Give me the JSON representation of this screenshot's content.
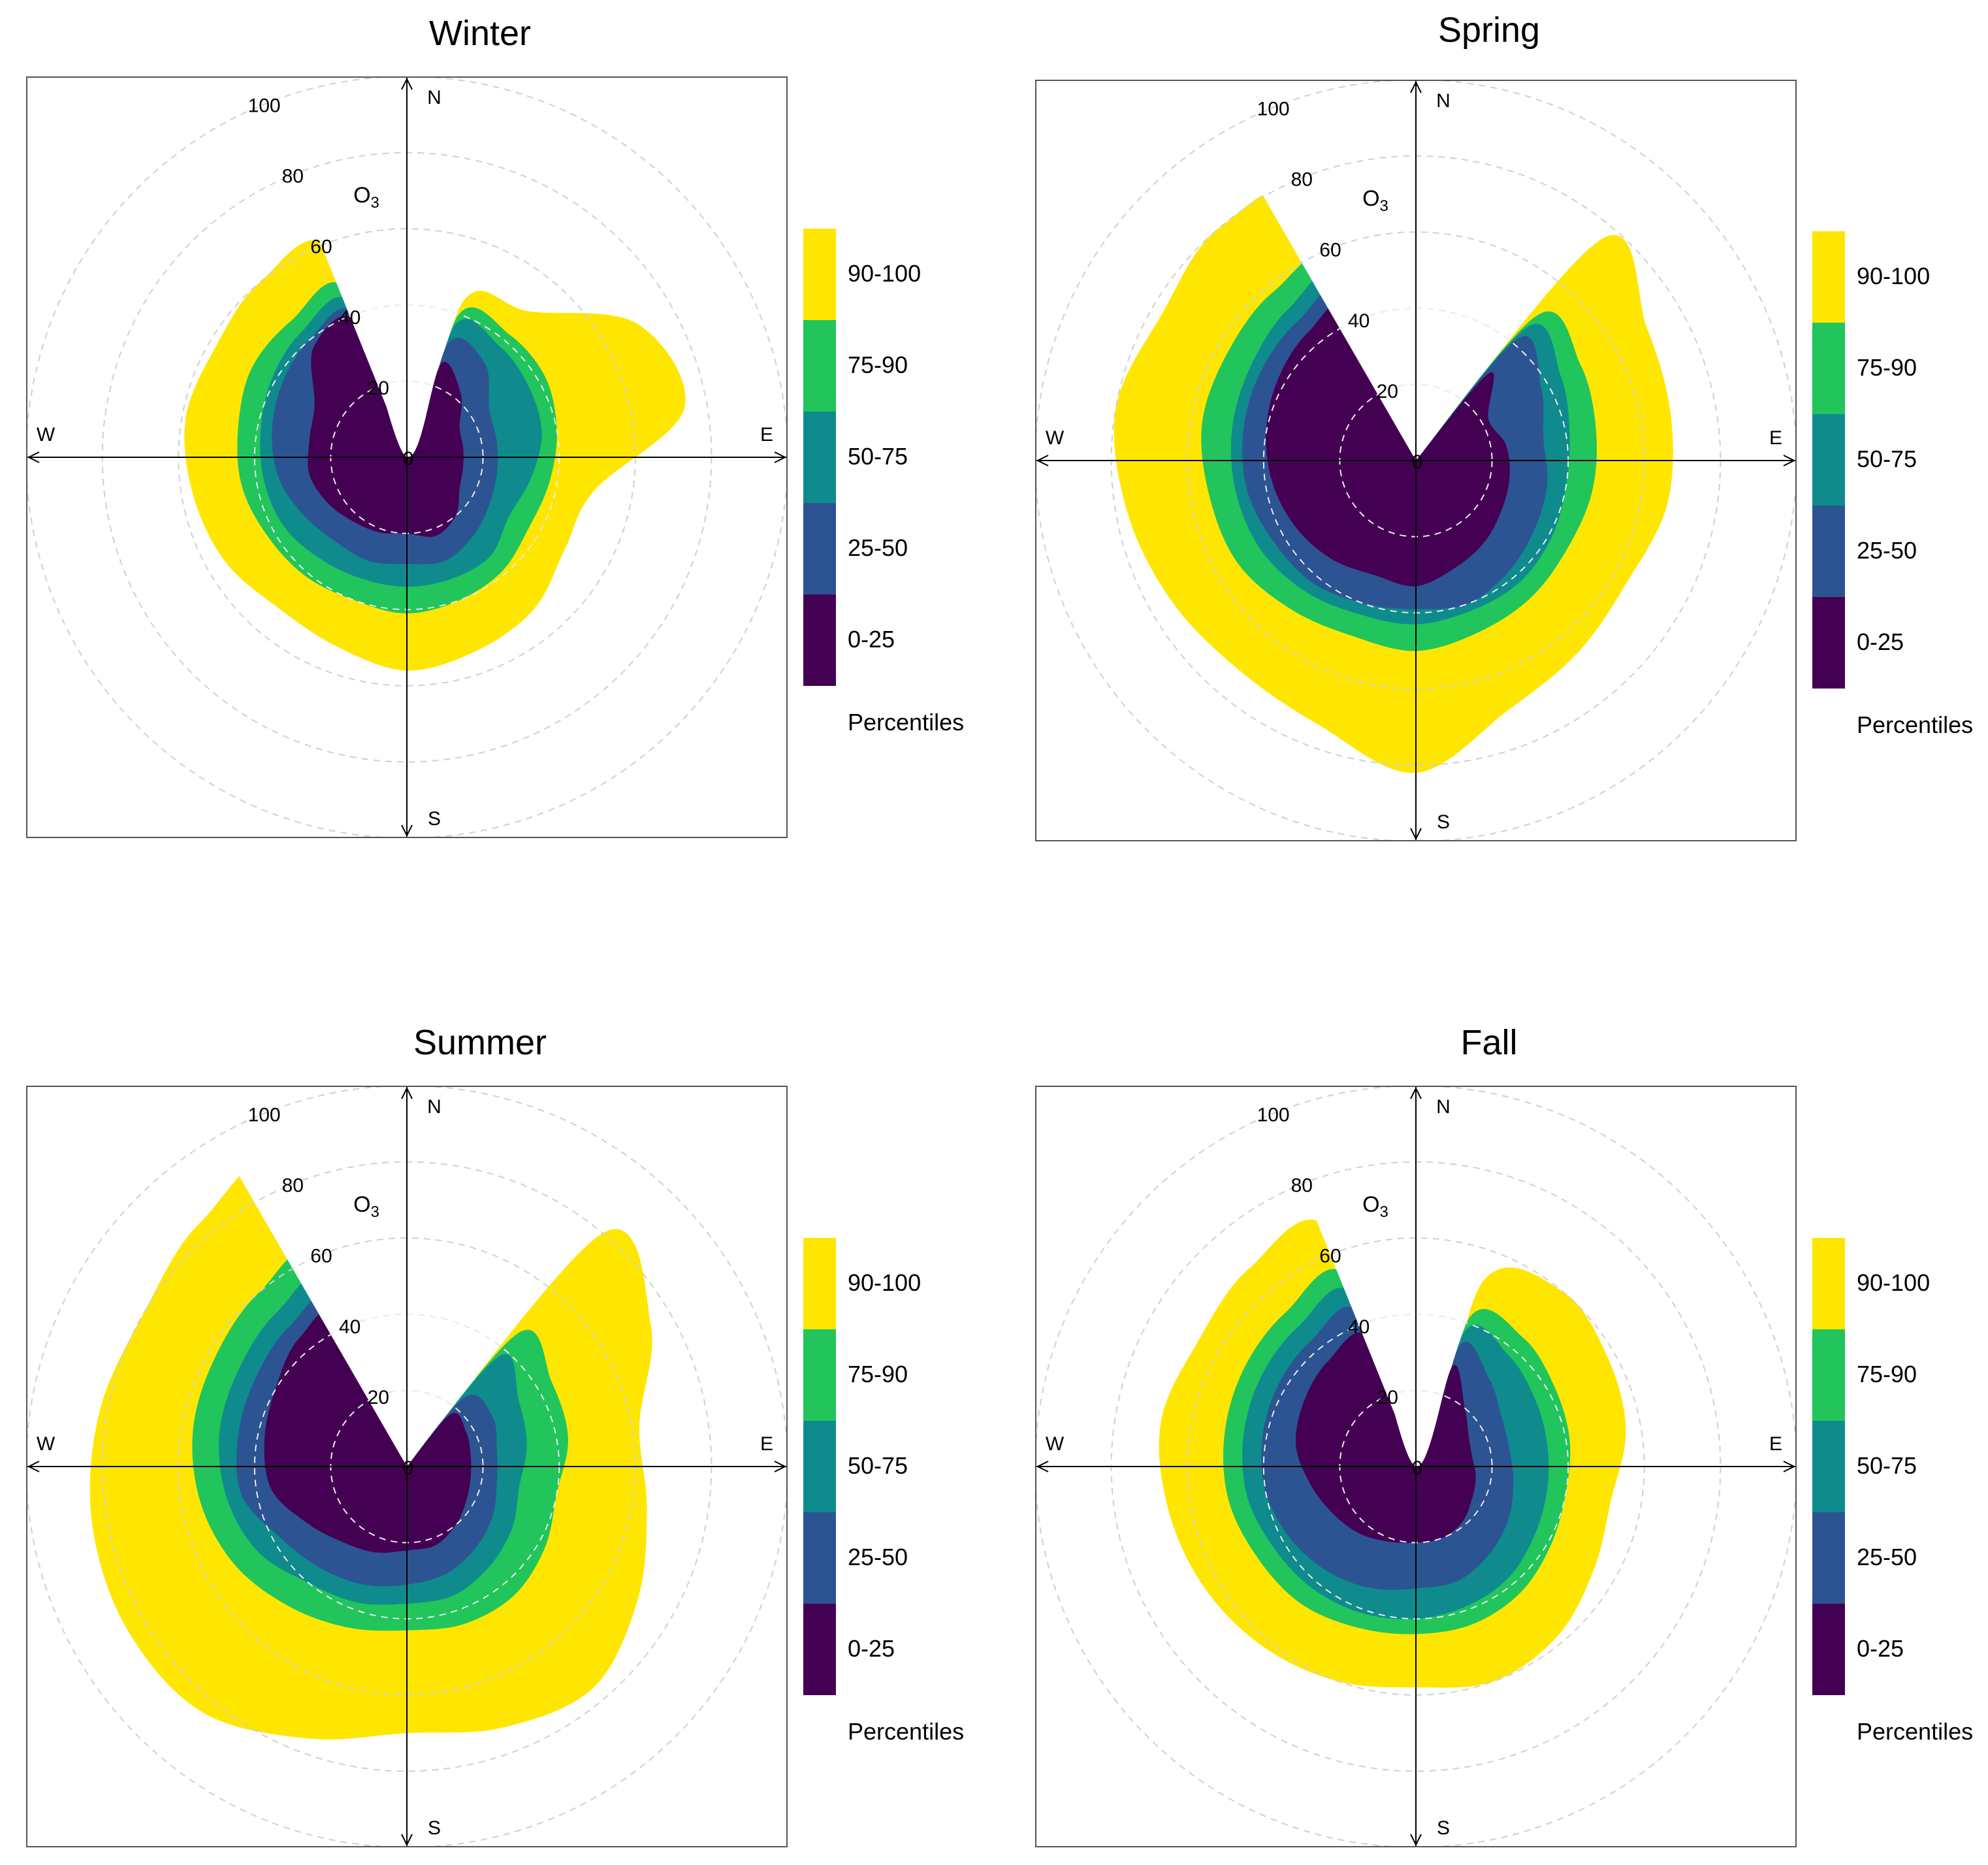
{
  "figure": {
    "pollutant_label": "O",
    "pollutant_subscript": "3",
    "legend_title": "Percentiles",
    "compass": {
      "n": "N",
      "s": "S",
      "e": "E",
      "w": "W"
    },
    "radial_tick_labels": [
      "0",
      "20",
      "40",
      "60",
      "80",
      "100"
    ]
  },
  "chart_data": [
    {
      "type": "polar-percentile-rose",
      "title": "Winter",
      "radial_range": [
        0,
        100
      ],
      "radial_ticks": [
        0,
        20,
        40,
        60,
        80,
        100
      ],
      "angles_deg": [
        0,
        20,
        40,
        60,
        80,
        100,
        120,
        140,
        160,
        180,
        200,
        220,
        240,
        260,
        280,
        300,
        320,
        340
      ],
      "missing_sector_deg": [
        338,
        8
      ],
      "levels": [
        {
          "name": "0-25",
          "color": "#440154",
          "radii": [
            0,
            26,
            22,
            16,
            15,
            15,
            16,
            20,
            22,
            20,
            21,
            22,
            24,
            26,
            26,
            28,
            38,
            38
          ]
        },
        {
          "name": "25-50",
          "color": "#2c5492",
          "radii": [
            0,
            32,
            32,
            25,
            24,
            24,
            25,
            27,
            29,
            28,
            29,
            29,
            31,
            34,
            36,
            38,
            40,
            40
          ]
        },
        {
          "name": "50-75",
          "color": "#0f8b8d",
          "radii": [
            0,
            37,
            38,
            37,
            36,
            33,
            31,
            34,
            34,
            34,
            34,
            35,
            37,
            38,
            39,
            41,
            43,
            43
          ]
        },
        {
          "name": "75-90",
          "color": "#21c55c",
          "radii": [
            0,
            40,
            42,
            42,
            40,
            38,
            37,
            39,
            40,
            41,
            40,
            41,
            42,
            44,
            45,
            47,
            47,
            47
          ]
        },
        {
          "name": "90-100",
          "color": "#ffe600",
          "radii": [
            0,
            44,
            50,
            70,
            74,
            50,
            48,
            52,
            54,
            56,
            53,
            52,
            55,
            57,
            59,
            58,
            60,
            58
          ]
        }
      ]
    },
    {
      "type": "polar-percentile-rose",
      "title": "Spring",
      "radial_range": [
        0,
        100
      ],
      "radial_ticks": [
        0,
        20,
        40,
        60,
        80,
        100
      ],
      "angles_deg": [
        0,
        20,
        40,
        60,
        80,
        100,
        120,
        140,
        160,
        180,
        200,
        220,
        240,
        260,
        280,
        300,
        320,
        340
      ],
      "missing_sector_deg": [
        330,
        30
      ],
      "levels": [
        {
          "name": "0-25",
          "color": "#440154",
          "radii": [
            0,
            0,
            30,
            22,
            24,
            25,
            26,
            28,
            30,
            33,
            32,
            34,
            36,
            38,
            40,
            42,
            44,
            44
          ]
        },
        {
          "name": "25-50",
          "color": "#2c5492",
          "radii": [
            0,
            0,
            42,
            38,
            34,
            35,
            36,
            38,
            40,
            39,
            40,
            42,
            43,
            45,
            46,
            47,
            48,
            48
          ]
        },
        {
          "name": "50-75",
          "color": "#0f8b8d",
          "radii": [
            0,
            0,
            46,
            44,
            41,
            40,
            41,
            42,
            42,
            43,
            43,
            45,
            47,
            48,
            49,
            50,
            52,
            52
          ]
        },
        {
          "name": "75-90",
          "color": "#21c55c",
          "radii": [
            0,
            0,
            50,
            50,
            48,
            47,
            46,
            47,
            48,
            50,
            49,
            51,
            54,
            55,
            57,
            57,
            58,
            56
          ]
        },
        {
          "name": "90-100",
          "color": "#ffe600",
          "radii": [
            0,
            0,
            76,
            70,
            68,
            67,
            64,
            66,
            70,
            82,
            74,
            72,
            74,
            77,
            80,
            77,
            80,
            73
          ]
        }
      ]
    },
    {
      "type": "polar-percentile-rose",
      "title": "Summer",
      "radial_range": [
        0,
        100
      ],
      "radial_ticks": [
        0,
        20,
        40,
        60,
        80,
        100
      ],
      "angles_deg": [
        0,
        20,
        40,
        60,
        80,
        100,
        120,
        140,
        160,
        180,
        200,
        220,
        240,
        260,
        280,
        300,
        320,
        340
      ],
      "missing_sector_deg": [
        330,
        30
      ],
      "levels": [
        {
          "name": "0-25",
          "color": "#440154",
          "radii": [
            0,
            0,
            18,
            18,
            17,
            17,
            18,
            20,
            22,
            22,
            24,
            26,
            30,
            36,
            38,
            40,
            44,
            44
          ]
        },
        {
          "name": "25-50",
          "color": "#2c5492",
          "radii": [
            0,
            0,
            24,
            26,
            24,
            24,
            26,
            28,
            30,
            31,
            33,
            35,
            38,
            44,
            45,
            46,
            48,
            48
          ]
        },
        {
          "name": "50-75",
          "color": "#0f8b8d",
          "radii": [
            0,
            0,
            38,
            34,
            32,
            30,
            32,
            34,
            36,
            36,
            38,
            40,
            45,
            48,
            50,
            51,
            53,
            53
          ]
        },
        {
          "name": "75-90",
          "color": "#21c55c",
          "radii": [
            0,
            0,
            46,
            44,
            43,
            40,
            42,
            44,
            44,
            43,
            45,
            48,
            52,
            55,
            57,
            58,
            60,
            60
          ]
        },
        {
          "name": "90-100",
          "color": "#ffe600",
          "radii": [
            0,
            0,
            80,
            74,
            62,
            64,
            70,
            76,
            73,
            70,
            76,
            84,
            85,
            84,
            82,
            80,
            84,
            84
          ]
        }
      ]
    },
    {
      "type": "polar-percentile-rose",
      "title": "Fall",
      "radial_range": [
        0,
        100
      ],
      "radial_ticks": [
        0,
        20,
        40,
        60,
        80,
        100
      ],
      "angles_deg": [
        0,
        20,
        40,
        60,
        80,
        100,
        120,
        140,
        160,
        180,
        200,
        220,
        240,
        260,
        280,
        300,
        320,
        340
      ],
      "missing_sector_deg": [
        338,
        15
      ],
      "levels": [
        {
          "name": "0-25",
          "color": "#440154",
          "radii": [
            0,
            28,
            20,
            16,
            15,
            16,
            17,
            19,
            20,
            20,
            21,
            23,
            25,
            28,
            32,
            34,
            36,
            36
          ]
        },
        {
          "name": "25-50",
          "color": "#2c5492",
          "radii": [
            0,
            34,
            30,
            26,
            25,
            26,
            28,
            30,
            32,
            32,
            34,
            36,
            38,
            40,
            41,
            42,
            43,
            43
          ]
        },
        {
          "name": "50-75",
          "color": "#0f8b8d",
          "radii": [
            0,
            38,
            38,
            36,
            35,
            35,
            36,
            38,
            39,
            40,
            41,
            42,
            43,
            45,
            46,
            47,
            48,
            48
          ]
        },
        {
          "name": "75-90",
          "color": "#21c55c",
          "radii": [
            0,
            42,
            44,
            42,
            41,
            40,
            41,
            43,
            44,
            44,
            45,
            47,
            48,
            50,
            51,
            52,
            53,
            53
          ]
        },
        {
          "name": "90-100",
          "color": "#ffe600",
          "radii": [
            0,
            52,
            60,
            58,
            56,
            52,
            54,
            58,
            60,
            58,
            60,
            62,
            64,
            66,
            68,
            66,
            68,
            66
          ]
        }
      ]
    }
  ]
}
